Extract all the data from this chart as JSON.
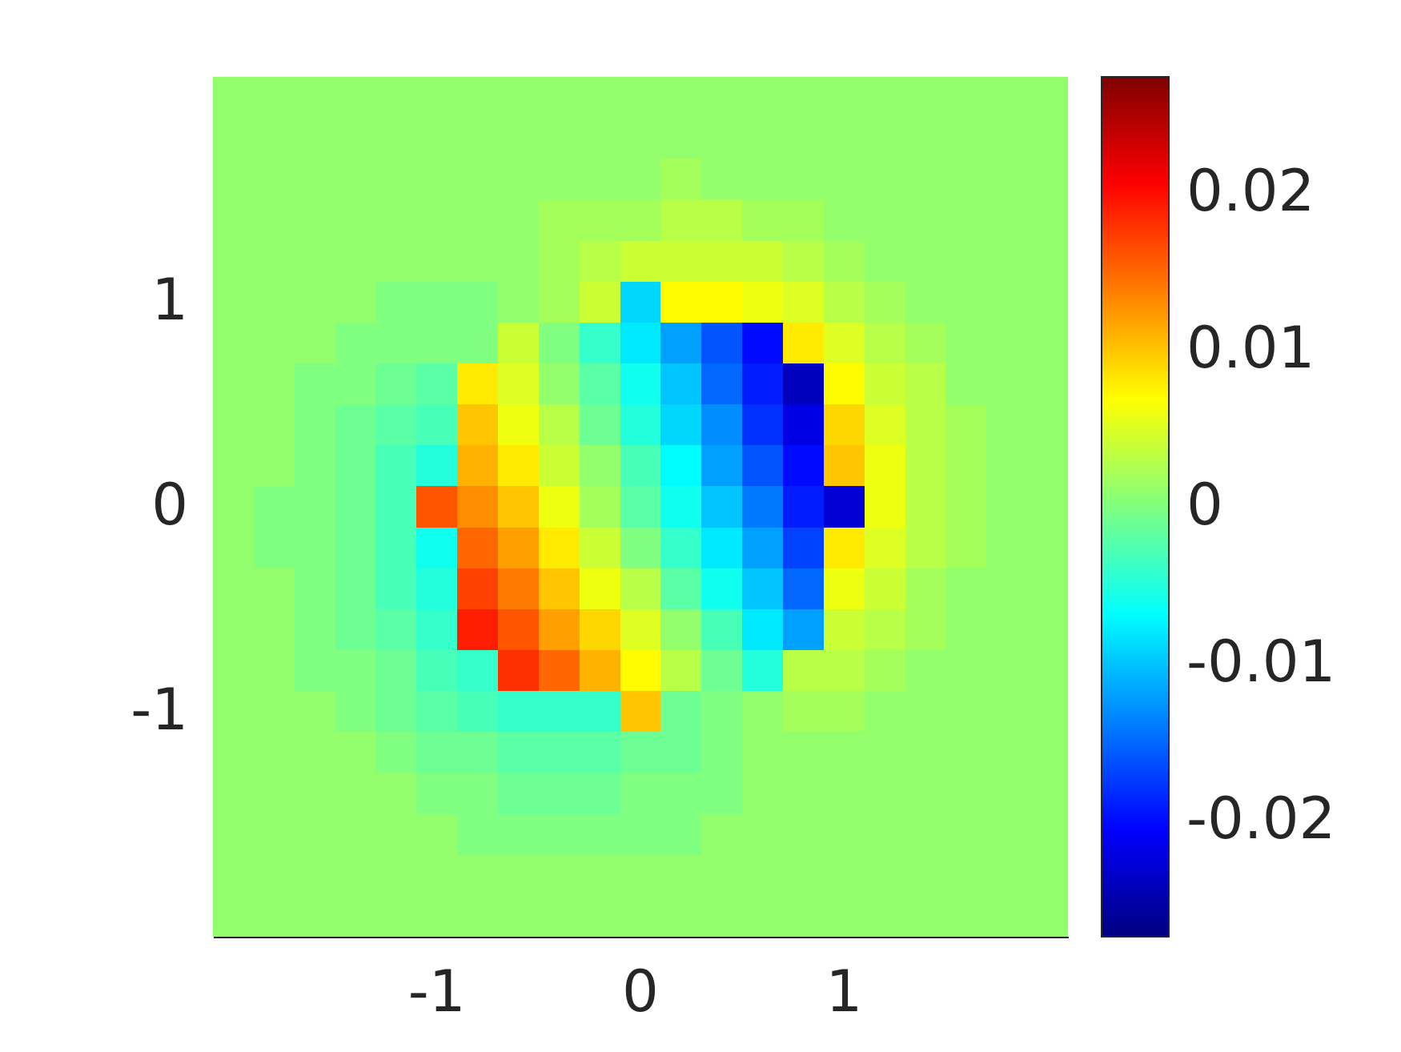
{
  "chart_data": {
    "type": "heatmap",
    "categories": [
      null,
      null,
      null,
      null,
      null,
      "-1",
      null,
      null,
      null,
      null,
      "0",
      null,
      null,
      null,
      null,
      "1",
      null,
      null,
      null,
      null,
      null
    ],
    "y_categories": [
      null,
      null,
      null,
      null,
      null,
      "1",
      null,
      null,
      null,
      null,
      "0",
      null,
      null,
      null,
      null,
      "-1",
      null,
      null,
      null,
      null,
      null
    ],
    "clim": [
      -0.0274,
      0.0274
    ],
    "cticks": [
      -0.02,
      -0.01,
      0,
      0.01,
      0.02
    ],
    "cells": [
      [
        0.001,
        0.001,
        0.001,
        0.001,
        0.001,
        0.001,
        0.001,
        0.001,
        0.001,
        0.001,
        0.001,
        0.001,
        0.001,
        0.001,
        0.001,
        0.001,
        0.001,
        0.001,
        0.001,
        0.001,
        0.001
      ],
      [
        0.001,
        0.001,
        0.001,
        0.001,
        0.001,
        0.001,
        0.001,
        0.001,
        0.001,
        0.001,
        0.001,
        0.001,
        0.001,
        0.001,
        0.001,
        0.001,
        0.001,
        0.001,
        0.001,
        0.001,
        0.001
      ],
      [
        0.001,
        0.001,
        0.001,
        0.001,
        0.001,
        0.001,
        0.001,
        0.001,
        0.001,
        0.001,
        0.001,
        0.002,
        0.001,
        0.001,
        0.001,
        0.001,
        0.001,
        0.001,
        0.001,
        0.001,
        0.001
      ],
      [
        0.001,
        0.001,
        0.001,
        0.001,
        0.001,
        0.001,
        0.001,
        0.001,
        0.002,
        0.002,
        0.002,
        0.003,
        0.003,
        0.002,
        0.002,
        0.001,
        0.001,
        0.001,
        0.001,
        0.001,
        0.001
      ],
      [
        0.001,
        0.001,
        0.001,
        0.001,
        0.001,
        0.001,
        0.001,
        0.001,
        0.002,
        0.003,
        0.004,
        0.004,
        0.004,
        0.004,
        0.003,
        0.002,
        0.001,
        0.001,
        0.001,
        0.001,
        0.001
      ],
      [
        0.001,
        0.001,
        0.001,
        0.001,
        0,
        0,
        0,
        0.001,
        0.002,
        0.004,
        -0.009,
        0.007,
        0.007,
        0.006,
        0.005,
        0.003,
        0.002,
        0.001,
        0.001,
        0.001,
        0.001
      ],
      [
        0.001,
        0.001,
        0.001,
        0,
        0,
        0,
        0,
        0.004,
        0,
        -0.004,
        -0.008,
        -0.012,
        -0.016,
        -0.02,
        0.008,
        0.005,
        0.003,
        0.002,
        0.001,
        0.001,
        0.001
      ],
      [
        0.001,
        0.001,
        0,
        0,
        -0.001,
        -0.002,
        0.008,
        0.005,
        0.001,
        -0.002,
        -0.006,
        -0.01,
        -0.015,
        -0.019,
        -0.024,
        0.007,
        0.004,
        0.003,
        0.001,
        0.001,
        0.001
      ],
      [
        0.001,
        0.001,
        0,
        -0.001,
        -0.002,
        -0.003,
        0.01,
        0.006,
        0.003,
        -0.001,
        -0.005,
        -0.009,
        -0.013,
        -0.018,
        -0.022,
        0.009,
        0.005,
        0.003,
        0.002,
        0.001,
        0.001
      ],
      [
        0.001,
        0.001,
        0,
        -0.001,
        -0.003,
        -0.005,
        0.011,
        0.008,
        0.004,
        0.001,
        -0.003,
        -0.007,
        -0.012,
        -0.016,
        -0.02,
        0.01,
        0.006,
        0.003,
        0.002,
        0.001,
        0.001
      ],
      [
        0.001,
        0,
        0,
        -0.001,
        -0.003,
        0.016,
        0.013,
        0.01,
        0.006,
        0.002,
        -0.002,
        -0.006,
        -0.01,
        -0.014,
        -0.019,
        -0.023,
        0.006,
        0.003,
        0.002,
        0.001,
        0.001
      ],
      [
        0.001,
        0,
        0,
        -0.001,
        -0.003,
        -0.006,
        0.015,
        0.012,
        0.008,
        0.004,
        0,
        -0.004,
        -0.008,
        -0.012,
        -0.017,
        0.008,
        0.005,
        0.003,
        0.002,
        0.001,
        0.001
      ],
      [
        0.001,
        0.001,
        0,
        -0.001,
        -0.003,
        -0.005,
        0.017,
        0.014,
        0.01,
        0.006,
        0.003,
        -0.002,
        -0.006,
        -0.01,
        -0.015,
        0.006,
        0.004,
        0.002,
        0.001,
        0.001,
        0.001
      ],
      [
        0.001,
        0.001,
        0,
        -0.001,
        -0.002,
        -0.004,
        0.019,
        0.016,
        0.012,
        0.009,
        0.005,
        0.001,
        -0.003,
        -0.008,
        -0.012,
        0.004,
        0.003,
        0.002,
        0.001,
        0.001,
        0.001
      ],
      [
        0.001,
        0.001,
        0,
        0,
        -0.001,
        -0.003,
        -0.004,
        0.018,
        0.015,
        0.011,
        0.007,
        0.003,
        -0.001,
        -0.005,
        0.003,
        0.003,
        0.002,
        0.001,
        0.001,
        0.001,
        0.001
      ],
      [
        0.001,
        0.001,
        0.001,
        0,
        -0.001,
        -0.002,
        -0.003,
        -0.004,
        -0.004,
        -0.004,
        0.01,
        -0.001,
        0,
        0.001,
        0.002,
        0.002,
        0.001,
        0.001,
        0.001,
        0.001,
        0.001
      ],
      [
        0.001,
        0.001,
        0.001,
        0.001,
        0,
        -0.001,
        -0.001,
        -0.002,
        -0.002,
        -0.002,
        -0.001,
        -0.001,
        0,
        0.001,
        0.001,
        0.001,
        0.001,
        0.001,
        0.001,
        0.001,
        0.001
      ],
      [
        0.001,
        0.001,
        0.001,
        0.001,
        0.001,
        0,
        0,
        -0.001,
        -0.001,
        -0.001,
        0,
        0,
        0,
        0.001,
        0.001,
        0.001,
        0.001,
        0.001,
        0.001,
        0.001,
        0.001
      ],
      [
        0.001,
        0.001,
        0.001,
        0.001,
        0.001,
        0.001,
        0,
        0,
        0,
        0,
        0,
        0,
        0.001,
        0.001,
        0.001,
        0.001,
        0.001,
        0.001,
        0.001,
        0.001,
        0.001
      ],
      [
        0.001,
        0.001,
        0.001,
        0.001,
        0.001,
        0.001,
        0.001,
        0.001,
        0.001,
        0.001,
        0.001,
        0.001,
        0.001,
        0.001,
        0.001,
        0.001,
        0.001,
        0.001,
        0.001,
        0.001,
        0.001
      ],
      [
        0.001,
        0.001,
        0.001,
        0.001,
        0.001,
        0.001,
        0.001,
        0.001,
        0.001,
        0.001,
        0.001,
        0.001,
        0.001,
        0.001,
        0.001,
        0.001,
        0.001,
        0.001,
        0.001,
        0.001,
        0.001
      ]
    ]
  }
}
